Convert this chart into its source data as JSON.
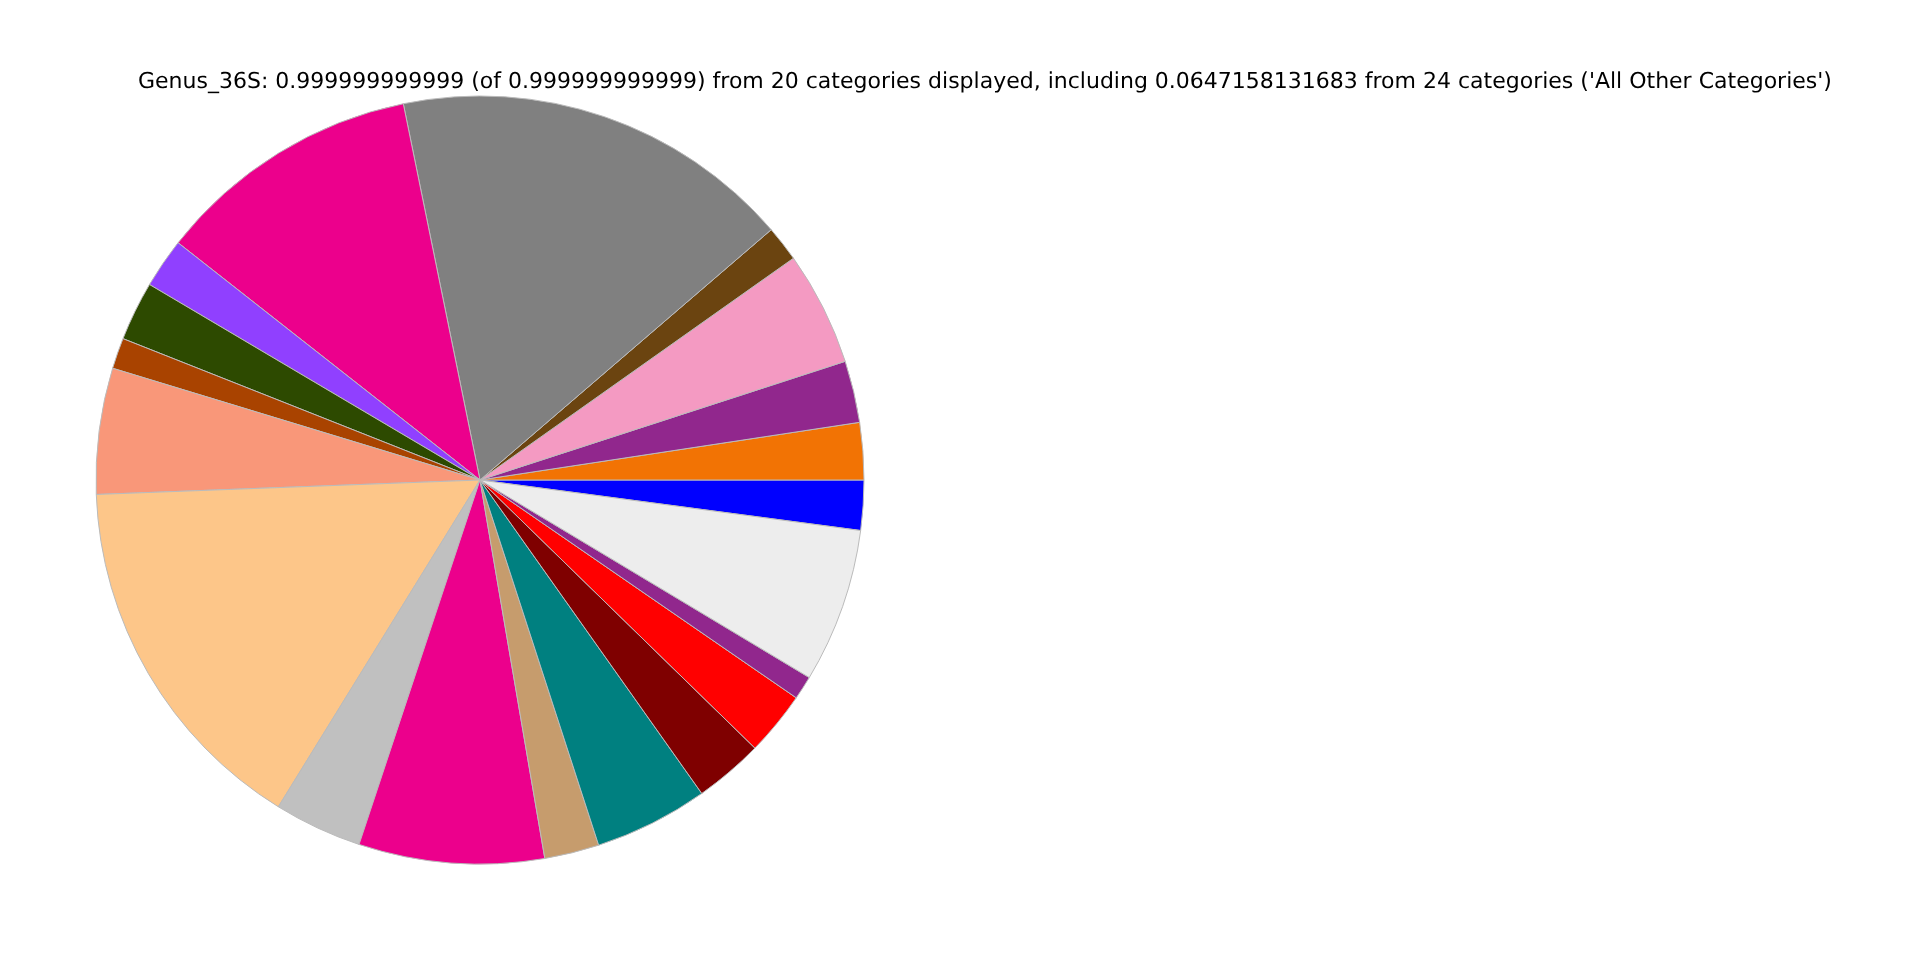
{
  "chart_data": {
    "type": "pie",
    "title": "Genus_36S: 0.999999999999 (of 0.999999999999) from 20 categories displayed, including 0.0647158131683 from 24 categories ('All Other Categories')",
    "categories": [
      null,
      null,
      null,
      null,
      null,
      null,
      null,
      null,
      null,
      null,
      null,
      null,
      null,
      null,
      null,
      null,
      null,
      null,
      null,
      null
    ],
    "values": [
      2.1,
      2.4,
      2.6,
      4.8,
      1.5,
      16.9,
      11.2,
      2.1,
      2.5,
      1.3,
      5.3,
      15.6,
      3.7,
      7.8,
      2.3,
      4.8,
      2.9,
      2.7,
      1.0,
      6.5
    ],
    "colors": [
      "#0000ff",
      "#f27304",
      "#91278d",
      "#f49ac2",
      "#6b4410",
      "#808080",
      "#ec008c",
      "#9040ff",
      "#2d4a00",
      "#a94300",
      "#f99779",
      "#fdc689",
      "#c0c0c0",
      "#ec008c",
      "#c69c6d",
      "#008080",
      "#7f0000",
      "#ff0000",
      "#91278d",
      "#ededed"
    ],
    "legend": false
  }
}
